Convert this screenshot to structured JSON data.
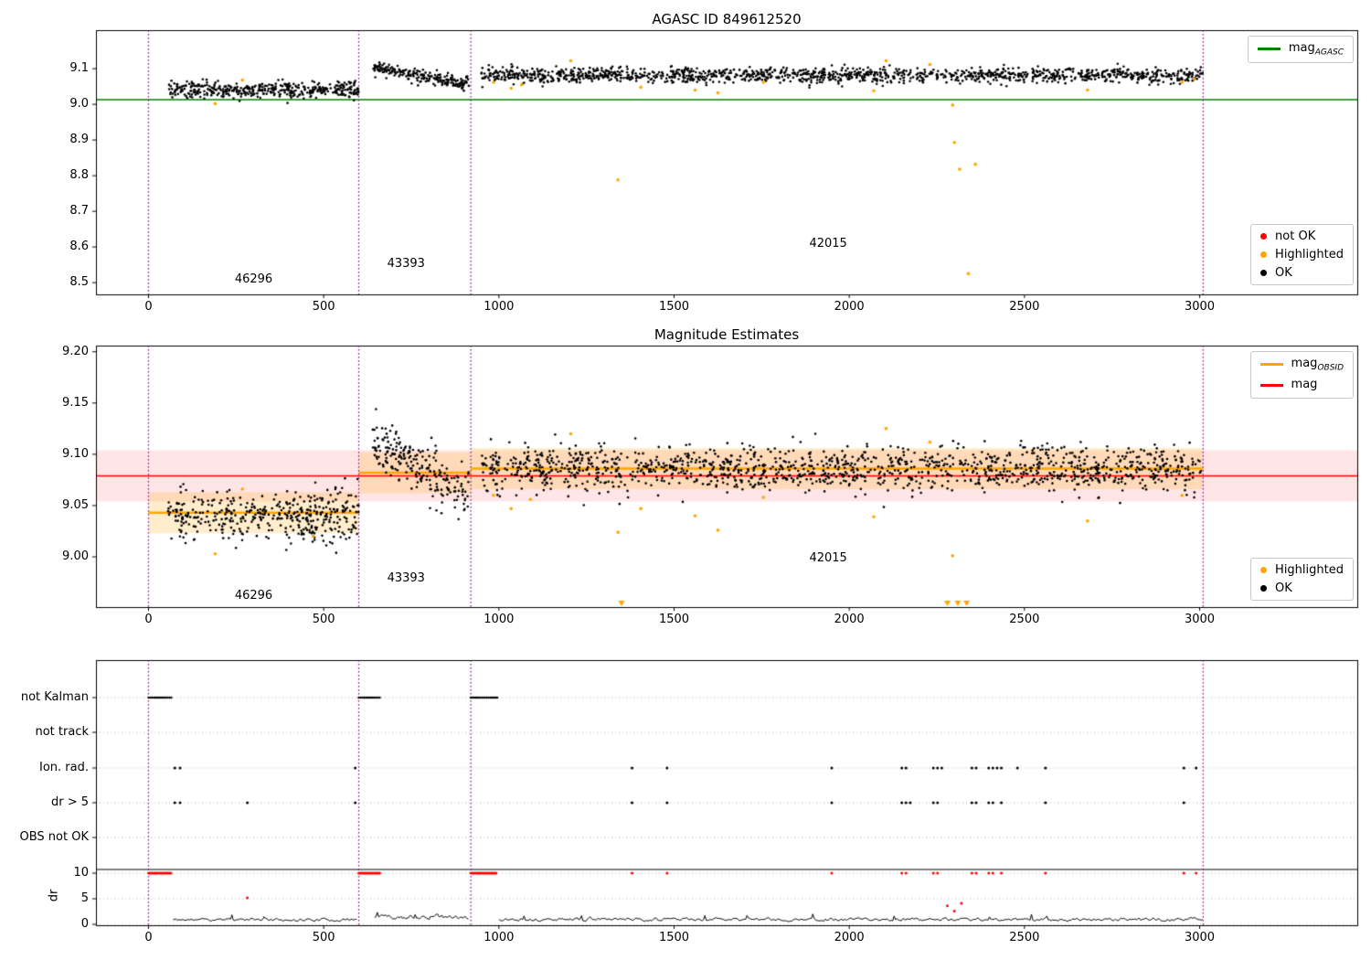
{
  "colors": {
    "background": "#ffffff",
    "ok": "#000000",
    "highlighted": "#ffa500",
    "not_ok": "#ff0000",
    "mag_agasc_line": "#008000",
    "mag_obsid_line": "#ffa500",
    "mag_line": "#ff0000",
    "divider": "#800080",
    "mag_band": "rgba(255,0,0,0.10)",
    "obsid_band": "rgba(255,165,0,0.20)",
    "grid": "#b0b0b0",
    "axis": "#000000"
  },
  "chart_data": [
    {
      "type": "scatter",
      "title": "AGASC ID 849612520",
      "xlim": [
        -150,
        3450
      ],
      "ylim": [
        8.467,
        9.208
      ],
      "xticks": [
        0,
        500,
        1000,
        1500,
        2000,
        2500,
        3000
      ],
      "yticks": [
        8.5,
        8.6,
        8.7,
        8.8,
        8.9,
        9.0,
        9.1
      ],
      "ytick_labels": [
        "8.5",
        "8.6",
        "8.7",
        "8.8",
        "8.9",
        "9.0",
        "9.1"
      ],
      "mag_agasc_value": 9.013,
      "dividers_x": [
        0,
        600,
        920,
        3010
      ],
      "annotations": [
        {
          "text": "46296",
          "x": 300,
          "y": 8.508
        },
        {
          "text": "43393",
          "x": 735,
          "y": 8.552
        },
        {
          "text": "42015",
          "x": 1940,
          "y": 8.608
        }
      ],
      "series": [
        {
          "name": "obsid 46296 OK",
          "marker": "dot",
          "color_key": "ok",
          "gen": {
            "x_start": 55,
            "x_end": 600,
            "n": 420,
            "y_mean": 9.041,
            "y_sigma": 0.011,
            "seed": 1
          }
        },
        {
          "name": "obsid 43393 OK",
          "marker": "dot",
          "color_key": "ok",
          "gen": {
            "x_start": 640,
            "x_end": 915,
            "n": 220,
            "y_start": 9.103,
            "y_end": 9.057,
            "y_sigma": 0.009,
            "seed": 2
          }
        },
        {
          "name": "obsid 42015 OK",
          "marker": "dot",
          "color_key": "ok",
          "gen": {
            "x_start": 950,
            "x_end": 3010,
            "n": 1350,
            "y_mean": 9.082,
            "y_sigma": 0.011,
            "seed": 3
          }
        }
      ],
      "highlighted": [
        [
          190,
          9.002
        ],
        [
          268,
          9.068
        ],
        [
          985,
          9.062
        ],
        [
          1035,
          9.045
        ],
        [
          1065,
          9.055
        ],
        [
          1205,
          9.122
        ],
        [
          1340,
          8.788
        ],
        [
          1405,
          9.048
        ],
        [
          1560,
          9.04
        ],
        [
          1625,
          9.032
        ],
        [
          1755,
          9.062
        ],
        [
          2070,
          9.038
        ],
        [
          2105,
          9.122
        ],
        [
          2230,
          9.112
        ],
        [
          2295,
          8.998
        ],
        [
          2300,
          8.893
        ],
        [
          2315,
          8.818
        ],
        [
          2360,
          8.832
        ],
        [
          2340,
          8.525
        ],
        [
          2680,
          9.04
        ],
        [
          2950,
          9.062
        ],
        [
          2985,
          9.07
        ]
      ],
      "legend_line": {
        "label_main": "mag",
        "label_sub": "AGASC"
      },
      "legend_markers": [
        {
          "label": "not OK",
          "color_key": "not_ok"
        },
        {
          "label": "Highlighted",
          "color_key": "highlighted"
        },
        {
          "label": "OK",
          "color_key": "ok"
        }
      ]
    },
    {
      "type": "scatter",
      "title": "Magnitude Estimates",
      "xlim": [
        -150,
        3450
      ],
      "ylim": [
        8.951,
        9.206
      ],
      "xticks": [
        0,
        500,
        1000,
        1500,
        2000,
        2500,
        3000
      ],
      "yticks": [
        9.0,
        9.05,
        9.1,
        9.15,
        9.2
      ],
      "ytick_labels": [
        "9.00",
        "9.05",
        "9.10",
        "9.15",
        "9.20"
      ],
      "mag_value": 9.079,
      "mag_band": [
        9.054,
        9.104
      ],
      "obsid_segments": [
        {
          "obsid": "46296",
          "x_start": 0,
          "x_end": 600,
          "mag": 9.043,
          "band": [
            9.023,
            9.063
          ]
        },
        {
          "obsid": "43393",
          "x_start": 600,
          "x_end": 920,
          "mag": 9.082,
          "band": [
            9.062,
            9.102
          ]
        },
        {
          "obsid": "42015",
          "x_start": 920,
          "x_end": 3010,
          "mag": 9.086,
          "band": [
            9.066,
            9.106
          ]
        }
      ],
      "dividers_x": [
        0,
        600,
        920,
        3010
      ],
      "annotations": [
        {
          "text": "46296",
          "x": 300,
          "y": 8.962
        },
        {
          "text": "43393",
          "x": 735,
          "y": 8.979
        },
        {
          "text": "42015",
          "x": 1940,
          "y": 8.998
        }
      ],
      "series": [
        {
          "name": "obsid 46296 OK",
          "marker": "dot",
          "color_key": "ok",
          "gen": {
            "x_start": 55,
            "x_end": 600,
            "n": 420,
            "y_mean": 9.041,
            "y_sigma": 0.013,
            "seed": 4
          }
        },
        {
          "name": "obsid 43393 OK",
          "marker": "dot",
          "color_key": "ok",
          "gen": {
            "x_start": 640,
            "x_end": 915,
            "n": 220,
            "y_start": 9.112,
            "y_end": 9.063,
            "y_sigma": 0.012,
            "seed": 5
          }
        },
        {
          "name": "obsid 42015 OK",
          "marker": "dot",
          "color_key": "ok",
          "gen": {
            "x_start": 950,
            "x_end": 3010,
            "n": 1350,
            "y_mean": 9.086,
            "y_sigma": 0.011,
            "seed": 6
          }
        }
      ],
      "highlighted": [
        [
          190,
          9.003
        ],
        [
          268,
          9.066
        ],
        [
          470,
          9.02
        ],
        [
          985,
          9.06
        ],
        [
          1035,
          9.047
        ],
        [
          1090,
          9.056
        ],
        [
          1205,
          9.12
        ],
        [
          1340,
          9.024
        ],
        [
          1405,
          9.047
        ],
        [
          1560,
          9.04
        ],
        [
          1625,
          9.026
        ],
        [
          1755,
          9.058
        ],
        [
          2070,
          9.039
        ],
        [
          2105,
          9.125
        ],
        [
          2230,
          9.112
        ],
        [
          2295,
          9.001
        ],
        [
          2680,
          9.035
        ],
        [
          2950,
          9.06
        ]
      ],
      "clipped_low": [
        1350,
        2280,
        2310,
        2335
      ],
      "legend_lines": [
        {
          "label_main": "mag",
          "label_sub": "OBSID",
          "color_key": "mag_obsid_line"
        },
        {
          "label_main": "mag",
          "label_sub": "",
          "color_key": "mag_line"
        }
      ],
      "legend_markers": [
        {
          "label": "Highlighted",
          "color_key": "highlighted"
        },
        {
          "label": "OK",
          "color_key": "ok"
        }
      ]
    },
    {
      "type": "flags",
      "xticks": [
        0,
        500,
        1000,
        1500,
        2000,
        2500,
        3000
      ],
      "dividers_x": [
        0,
        600,
        920,
        3010
      ],
      "rows": [
        {
          "key": "not_kalman",
          "label": "not Kalman",
          "runs": [
            [
              0,
              65
            ],
            [
              600,
              662
            ],
            [
              920,
              995
            ]
          ],
          "points": []
        },
        {
          "key": "not_track",
          "label": "not track",
          "points": []
        },
        {
          "key": "ion_rad",
          "label": "Ion. rad.",
          "points": [
            75,
            90,
            590,
            1380,
            1480,
            1950,
            2150,
            2162,
            2240,
            2252,
            2264,
            2350,
            2362,
            2398,
            2410,
            2422,
            2434,
            2480,
            2560,
            2955,
            2990
          ]
        },
        {
          "key": "dr_gt_5",
          "label": "dr > 5",
          "points": [
            75,
            90,
            282,
            590,
            1380,
            1480,
            1950,
            2150,
            2162,
            2174,
            2240,
            2252,
            2350,
            2362,
            2398,
            2410,
            2434,
            2560,
            2955
          ]
        },
        {
          "key": "obs_not_ok",
          "label": "OBS not OK",
          "points": []
        }
      ],
      "dr_axis": {
        "label": "dr",
        "ticks": [
          0,
          5,
          10
        ],
        "cap_value": 10
      },
      "dr_red_runs": [
        [
          0,
          65
        ],
        [
          600,
          662
        ],
        [
          920,
          995
        ]
      ],
      "dr_red_points": [
        [
          282,
          5.2
        ],
        [
          1380,
          10
        ],
        [
          1480,
          10
        ],
        [
          1950,
          10
        ],
        [
          2150,
          10
        ],
        [
          2162,
          10
        ],
        [
          2240,
          10
        ],
        [
          2252,
          10
        ],
        [
          2280,
          3.6
        ],
        [
          2300,
          2.6
        ],
        [
          2320,
          4.1
        ],
        [
          2350,
          10
        ],
        [
          2362,
          10
        ],
        [
          2398,
          10
        ],
        [
          2410,
          10
        ],
        [
          2434,
          10
        ],
        [
          2560,
          10
        ],
        [
          2955,
          10
        ],
        [
          2990,
          10
        ]
      ],
      "dr_black_runs": [
        {
          "x_start": 70,
          "x_end": 595,
          "base": 0.9,
          "noise": 0.5,
          "seed": 11
        },
        {
          "x_start": 645,
          "x_end": 915,
          "base": 1.5,
          "noise": 0.8,
          "seed": 12
        },
        {
          "x_start": 1000,
          "x_end": 3010,
          "base": 0.95,
          "noise": 0.55,
          "seed": 13
        }
      ]
    }
  ]
}
